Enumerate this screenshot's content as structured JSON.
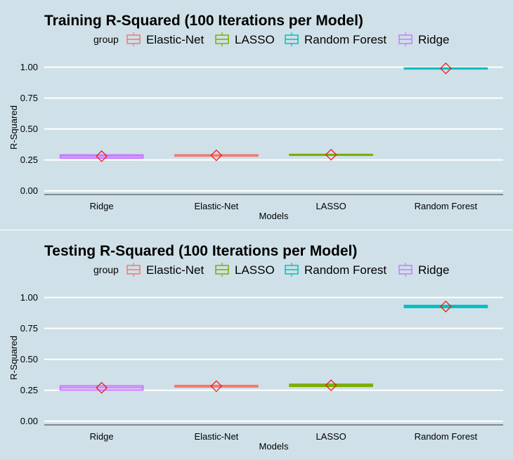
{
  "colors": {
    "background": "#cfe0e8",
    "grid": "#ffffff",
    "axis": "#333333",
    "mean_marker": "#e8140c"
  },
  "legend": {
    "title": "group"
  },
  "chart_data": [
    {
      "type": "box",
      "title": "Training R-Squared (100 Iterations per Model)",
      "xlabel": "Models",
      "ylabel": "R-Squared",
      "ylim": [
        -0.03,
        1.1
      ],
      "yticks": [
        0.0,
        0.25,
        0.5,
        0.75,
        1.0
      ],
      "ytick_labels": [
        "0.00",
        "0.25",
        "0.50",
        "0.75",
        "1.00"
      ],
      "categories": [
        "Ridge",
        "Elastic-Net",
        "LASSO",
        "Random Forest"
      ],
      "legend": [
        "Elastic-Net",
        "LASSO",
        "Random Forest",
        "Ridge"
      ],
      "series_colors": {
        "Elastic-Net": "#f8766d",
        "LASSO": "#7cae00",
        "Random Forest": "#00bfc4",
        "Ridge": "#c77cff"
      },
      "boxes": [
        {
          "group": "Ridge",
          "q1": 0.265,
          "median": 0.28,
          "q3": 0.29,
          "mean": 0.28
        },
        {
          "group": "Elastic-Net",
          "q1": 0.282,
          "median": 0.286,
          "q3": 0.29,
          "mean": 0.287
        },
        {
          "group": "LASSO",
          "q1": 0.29,
          "median": 0.292,
          "q3": 0.294,
          "mean": 0.292
        },
        {
          "group": "Random Forest",
          "q1": 0.988,
          "median": 0.99,
          "q3": 0.992,
          "mean": 0.99
        }
      ],
      "grid": true,
      "legend_position": "top"
    },
    {
      "type": "box",
      "title": "Testing R-Squared (100 Iterations per Model)",
      "xlabel": "Models",
      "ylabel": "R-Squared",
      "ylim": [
        -0.03,
        1.1
      ],
      "yticks": [
        0.0,
        0.25,
        0.5,
        0.75,
        1.0
      ],
      "ytick_labels": [
        "0.00",
        "0.25",
        "0.50",
        "0.75",
        "1.00"
      ],
      "categories": [
        "Ridge",
        "Elastic-Net",
        "LASSO",
        "Random Forest"
      ],
      "legend": [
        "Elastic-Net",
        "LASSO",
        "Random Forest",
        "Ridge"
      ],
      "series_colors": {
        "Elastic-Net": "#f8766d",
        "LASSO": "#7cae00",
        "Random Forest": "#00bfc4",
        "Ridge": "#c77cff"
      },
      "boxes": [
        {
          "group": "Ridge",
          "q1": 0.252,
          "median": 0.27,
          "q3": 0.285,
          "mean": 0.27
        },
        {
          "group": "Elastic-Net",
          "q1": 0.278,
          "median": 0.282,
          "q3": 0.288,
          "mean": 0.283
        },
        {
          "group": "LASSO",
          "q1": 0.282,
          "median": 0.29,
          "q3": 0.298,
          "mean": 0.29
        },
        {
          "group": "Random Forest",
          "q1": 0.92,
          "median": 0.93,
          "q3": 0.935,
          "mean": 0.927
        }
      ],
      "grid": true,
      "legend_position": "top"
    }
  ]
}
